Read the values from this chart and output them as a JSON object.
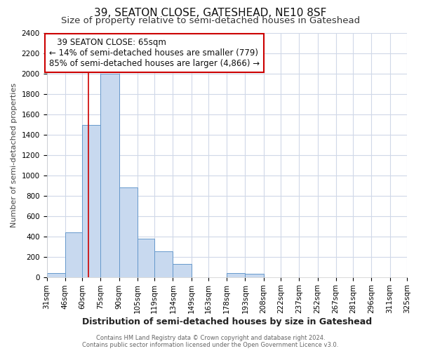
{
  "title": "39, SEATON CLOSE, GATESHEAD, NE10 8SF",
  "subtitle": "Size of property relative to semi-detached houses in Gateshead",
  "xlabel": "Distribution of semi-detached houses by size in Gateshead",
  "ylabel_full": "Number of semi-detached properties",
  "footer_line1": "Contains HM Land Registry data © Crown copyright and database right 2024.",
  "footer_line2": "Contains public sector information licensed under the Open Government Licence v3.0.",
  "annotation_title": "39 SEATON CLOSE: 65sqm",
  "annotation_line1": "← 14% of semi-detached houses are smaller (779)",
  "annotation_line2": "85% of semi-detached houses are larger (4,866) →",
  "property_size": 65,
  "bar_color": "#c8d9ef",
  "bar_edge_color": "#6699cc",
  "red_line_color": "#cc0000",
  "annotation_box_color": "#ffffff",
  "annotation_box_edge": "#cc0000",
  "categories": [
    "31sqm",
    "46sqm",
    "60sqm",
    "75sqm",
    "90sqm",
    "105sqm",
    "119sqm",
    "134sqm",
    "149sqm",
    "163sqm",
    "178sqm",
    "193sqm",
    "208sqm",
    "222sqm",
    "237sqm",
    "252sqm",
    "267sqm",
    "281sqm",
    "296sqm",
    "311sqm",
    "325sqm"
  ],
  "bin_edges": [
    31,
    46,
    60,
    75,
    90,
    105,
    119,
    134,
    149,
    163,
    178,
    193,
    208,
    222,
    237,
    252,
    267,
    281,
    296,
    311,
    325
  ],
  "values": [
    40,
    440,
    1490,
    2000,
    880,
    375,
    255,
    130,
    0,
    0,
    40,
    30,
    0,
    0,
    0,
    0,
    0,
    0,
    0,
    0
  ],
  "ylim": [
    0,
    2400
  ],
  "yticks": [
    0,
    200,
    400,
    600,
    800,
    1000,
    1200,
    1400,
    1600,
    1800,
    2000,
    2200,
    2400
  ],
  "background_color": "#ffffff",
  "grid_color": "#d0d8e8",
  "title_fontsize": 11,
  "subtitle_fontsize": 9.5,
  "tick_fontsize": 7.5,
  "ylabel_fontsize": 8,
  "xlabel_fontsize": 9,
  "footer_fontsize": 6,
  "annotation_fontsize": 8.5
}
